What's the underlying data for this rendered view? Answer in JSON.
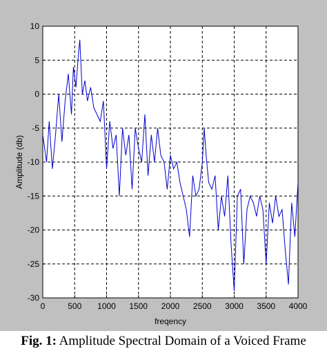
{
  "chart_data": {
    "type": "line",
    "title": "",
    "xlabel": "freqency",
    "ylabel": "Amplitude (db)",
    "xlim": [
      0,
      4000
    ],
    "ylim": [
      -30,
      10
    ],
    "grid": true,
    "grid_style": "dashed",
    "line_color": "#0000cc",
    "background_color": "#c0c0c0",
    "x_ticks": [
      "0",
      "500",
      "1000",
      "1500",
      "2000",
      "2500",
      "3000",
      "3500",
      "4000"
    ],
    "y_ticks": [
      "10",
      "5",
      "0",
      "-5",
      "-10",
      "-15",
      "-20",
      "-25",
      "-30"
    ],
    "series": [
      {
        "x": [
          0,
          60,
          100,
          150,
          200,
          250,
          300,
          350,
          400,
          450,
          480,
          520,
          560,
          580,
          620,
          660,
          700,
          750,
          800,
          850,
          900,
          950,
          1000,
          1050,
          1100,
          1150,
          1200,
          1250,
          1300,
          1350,
          1400,
          1450,
          1500,
          1550,
          1600,
          1650,
          1700,
          1750,
          1800,
          1850,
          1900,
          1950,
          2000,
          2050,
          2100,
          2150,
          2200,
          2250,
          2300,
          2350,
          2400,
          2450,
          2500,
          2530,
          2560,
          2600,
          2650,
          2700,
          2750,
          2800,
          2850,
          2900,
          2950,
          3000,
          3050,
          3100,
          3150,
          3200,
          3250,
          3300,
          3350,
          3400,
          3450,
          3500,
          3550,
          3600,
          3650,
          3700,
          3750,
          3800,
          3850,
          3900,
          3950,
          4000
        ],
        "y": [
          -6,
          -10,
          -4,
          -11,
          -6,
          0,
          -7,
          -1,
          3,
          -3,
          4,
          1,
          6,
          8,
          0,
          2,
          -1,
          1,
          -2,
          -3,
          -4,
          -1,
          -11,
          -4,
          -8,
          -6,
          -15,
          -5,
          -9,
          -6,
          -14,
          -5,
          -8,
          -10,
          -3,
          -12,
          -6,
          -10,
          -5,
          -9,
          -10,
          -14,
          -9,
          -11,
          -10,
          -13,
          -15,
          -17,
          -21,
          -12,
          -15,
          -14,
          -10,
          -5,
          -9,
          -13,
          -14,
          -12,
          -20,
          -15,
          -18,
          -12,
          -22,
          -29,
          -15,
          -14,
          -25,
          -17,
          -15,
          -16,
          -18,
          -15,
          -17,
          -25,
          -16,
          -19,
          -15,
          -18,
          -17,
          -23,
          -28,
          -16,
          -21,
          -13
        ]
      }
    ]
  },
  "caption": {
    "label": "Fig. 1:",
    "text": "Amplitude Spectral Domain of a Voiced Frame"
  }
}
